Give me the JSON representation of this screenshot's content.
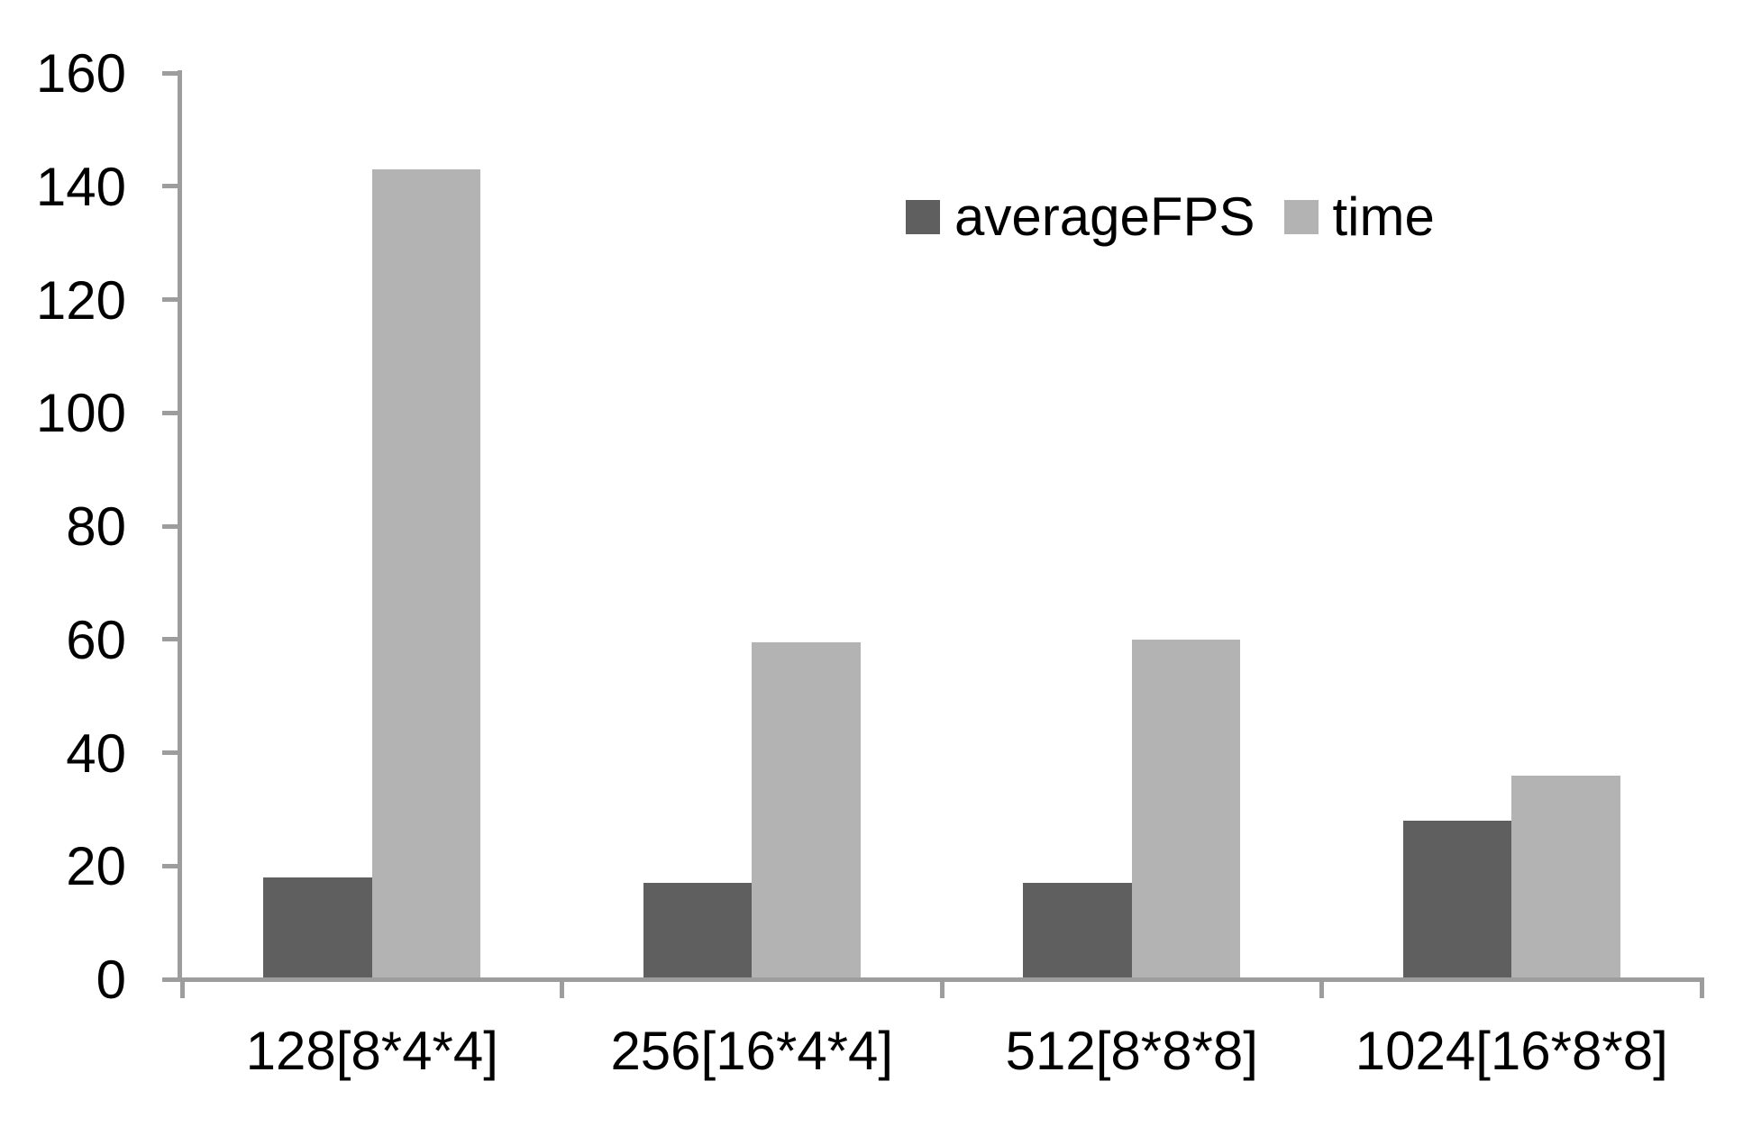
{
  "chart_data": {
    "type": "bar",
    "title": "",
    "categories": [
      "128[8*4*4]",
      "256[16*4*4]",
      "512[8*8*8]",
      "1024[16*8*8]"
    ],
    "series": [
      {
        "name": "averageFPS",
        "color": "#5f5f5f",
        "values": [
          18,
          17,
          17,
          28
        ]
      },
      {
        "name": "time",
        "color": "#b3b3b3",
        "values": [
          143,
          59.5,
          60,
          36
        ]
      }
    ],
    "ylim": [
      0,
      160
    ],
    "yticks": [
      0,
      20,
      40,
      60,
      80,
      100,
      120,
      140,
      160
    ],
    "grid": false,
    "legend_position": "top-center",
    "axis_color": "#9d9d9d",
    "text_color": "#000000"
  }
}
